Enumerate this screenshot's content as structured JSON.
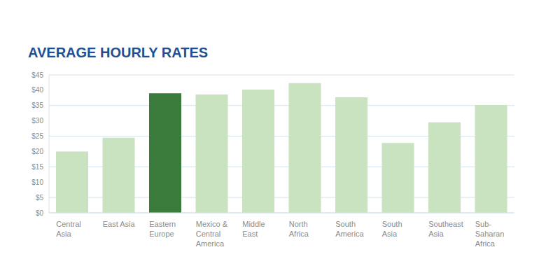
{
  "chart_data": {
    "type": "bar",
    "title": "AVERAGE HOURLY RATES",
    "categories": [
      "Central Asia",
      "East Asia",
      "Eastern Europe",
      "Mexico & Central America",
      "Middle East",
      "North Africa",
      "South America",
      "South Asia",
      "Southeast Asia",
      "Sub-Saharan Africa"
    ],
    "values": [
      20,
      24.5,
      39,
      38.6,
      40.2,
      42.3,
      37.7,
      22.8,
      29.5,
      35.2
    ],
    "colors": [
      "#c9e2c0",
      "#c9e2c0",
      "#3a7a3a",
      "#c9e2c0",
      "#c9e2c0",
      "#c9e2c0",
      "#c9e2c0",
      "#c9e2c0",
      "#c9e2c0",
      "#c9e2c0"
    ],
    "ylim": [
      0,
      45
    ],
    "yticks": [
      {
        "value": 0,
        "label": "$0"
      },
      {
        "value": 5,
        "label": "$5"
      },
      {
        "value": 10,
        "label": "$10"
      },
      {
        "value": 15,
        "label": "$15"
      },
      {
        "value": 20,
        "label": "$20"
      },
      {
        "value": 25,
        "label": "$25"
      },
      {
        "value": 30,
        "label": "$30"
      },
      {
        "value": 35,
        "label": "$35"
      },
      {
        "value": 40,
        "label": "$40"
      },
      {
        "value": 45,
        "label": "$45"
      }
    ],
    "grid": true
  }
}
